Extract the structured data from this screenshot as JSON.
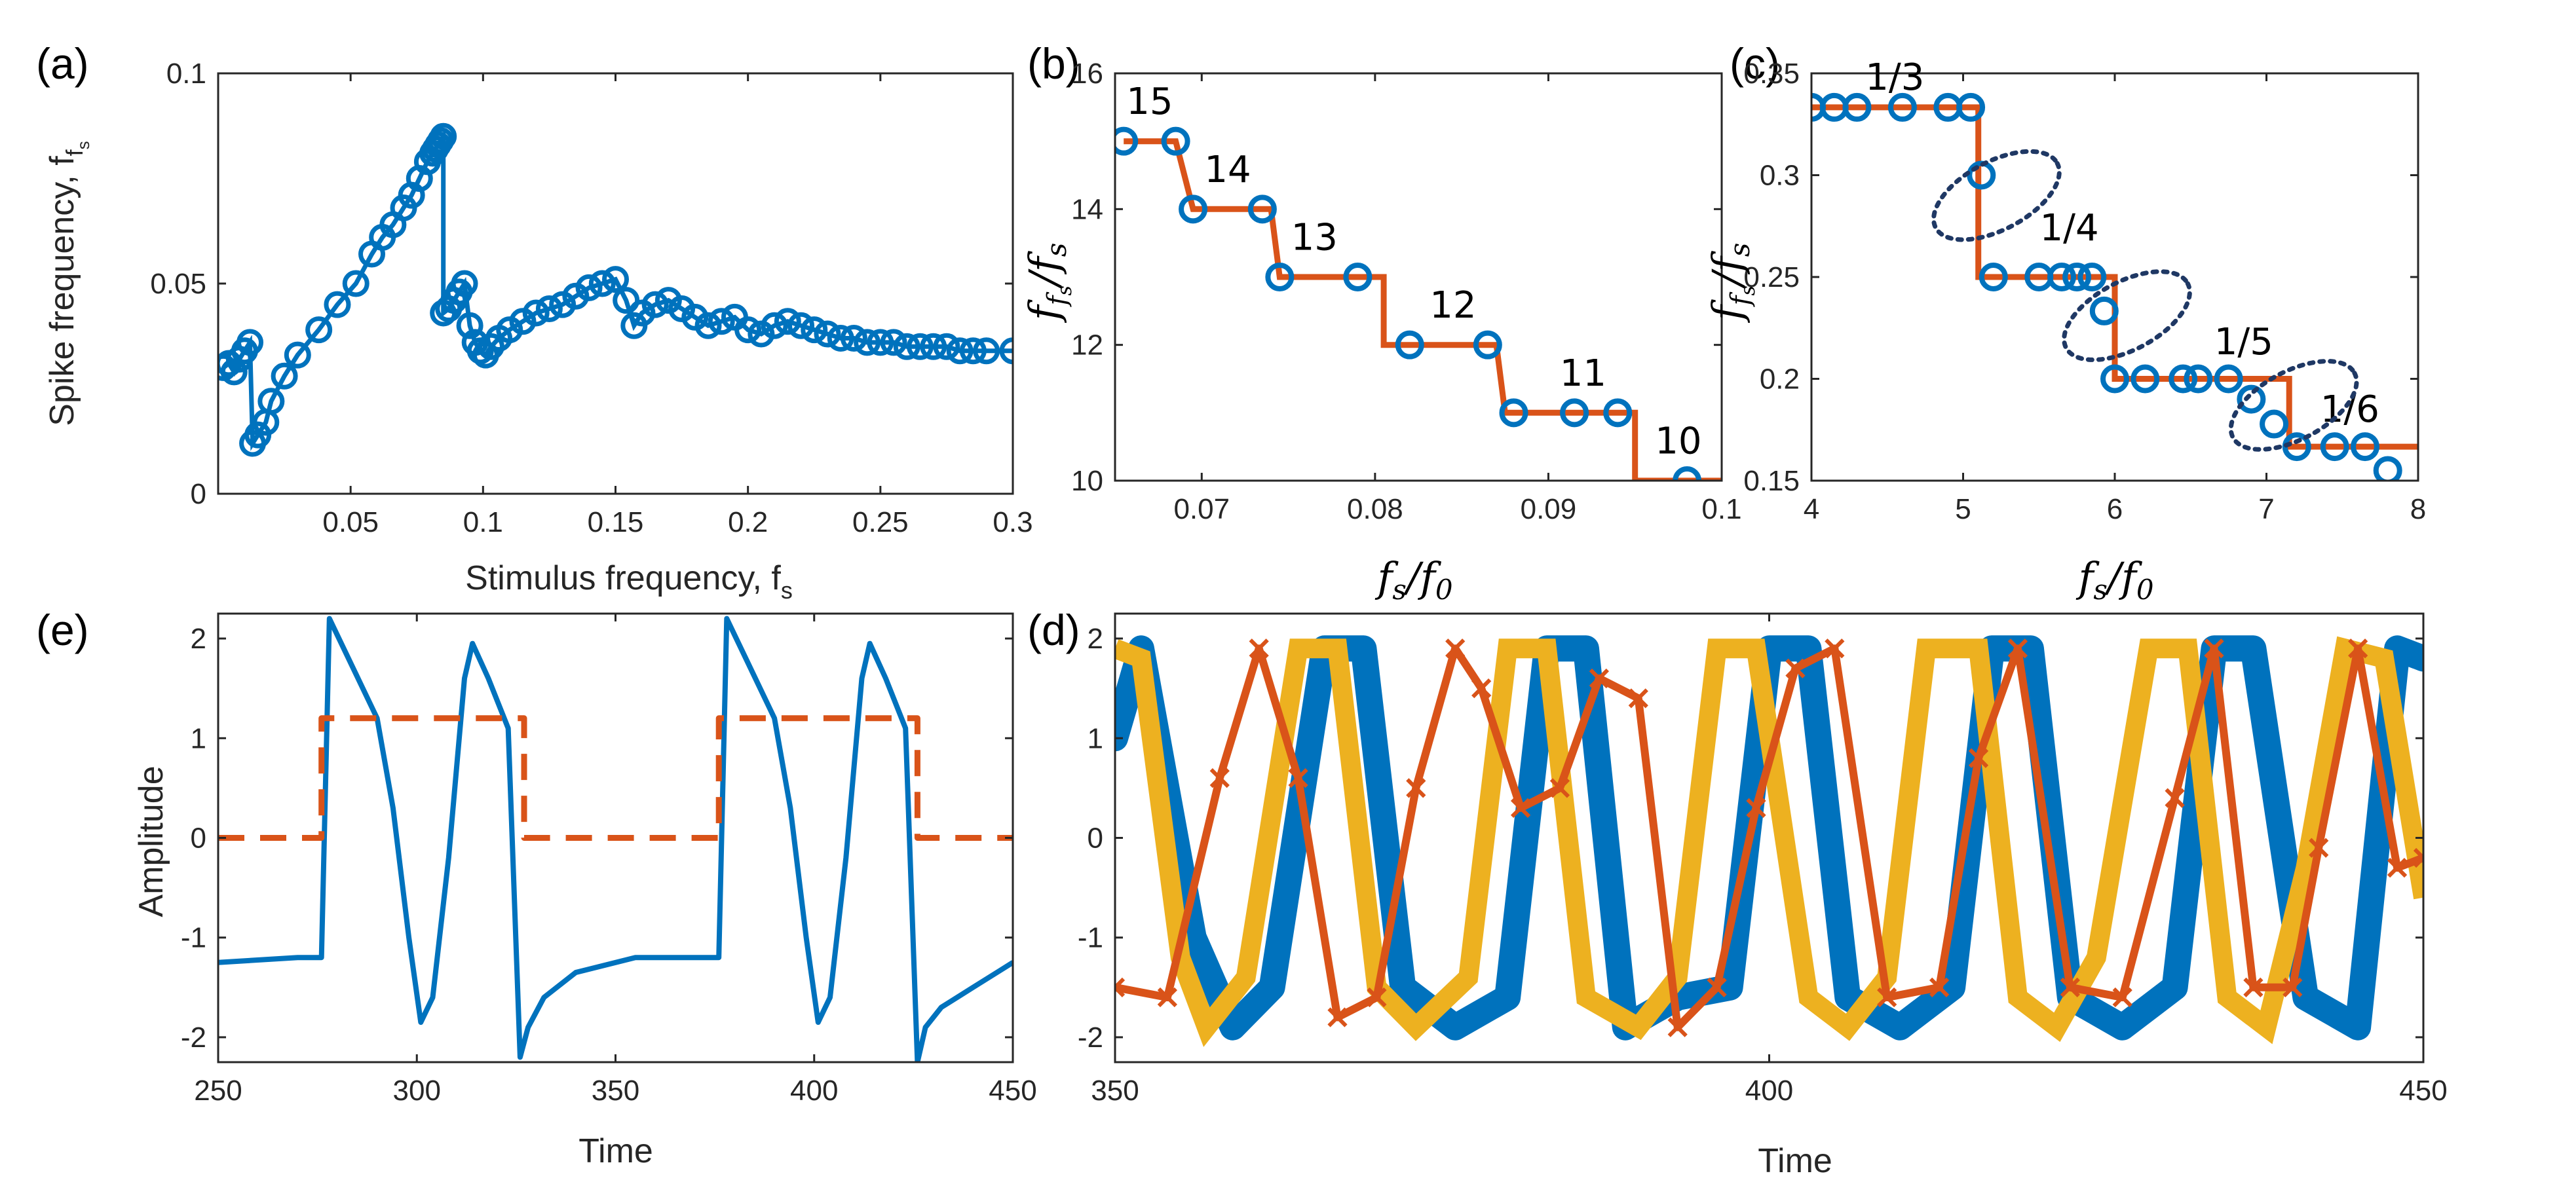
{
  "colors": {
    "blue": "#0072BD",
    "orange": "#D95319",
    "yellow": "#EDB120",
    "ellipse": "#1F3864"
  },
  "chart_data": [
    {
      "id": "a",
      "panel_label": "(a)",
      "type": "line",
      "xlabel": "Stimulus frequency, f",
      "xlabel_sub": "s",
      "ylabel": "Spike frequency, f",
      "ylabel_sub": "f",
      "ylabel_subsub": "s",
      "xlim": [
        0.0,
        0.3
      ],
      "ylim": [
        0,
        0.1
      ],
      "xticks": [
        0.05,
        0.1,
        0.15,
        0.2,
        0.25,
        0.3
      ],
      "xtick_labels": [
        "0.05",
        "0.1",
        "0.15",
        "0.2",
        "0.25",
        "0.3"
      ],
      "yticks": [
        0,
        0.05,
        0.1
      ],
      "ytick_labels": [
        "0",
        "0.05",
        "0.1"
      ],
      "series": [
        {
          "color": "#0072BD",
          "marker": "circle",
          "x": [
            0.002,
            0.004,
            0.006,
            0.008,
            0.01,
            0.012,
            0.013,
            0.015,
            0.018,
            0.02,
            0.025,
            0.03,
            0.038,
            0.045,
            0.052,
            0.058,
            0.062,
            0.066,
            0.07,
            0.073,
            0.076,
            0.079,
            0.081,
            0.082,
            0.083,
            0.084,
            0.085,
            0.085,
            0.087,
            0.089,
            0.091,
            0.093,
            0.095,
            0.097,
            0.099,
            0.101,
            0.103,
            0.106,
            0.11,
            0.115,
            0.12,
            0.125,
            0.13,
            0.135,
            0.14,
            0.145,
            0.15,
            0.154,
            0.157,
            0.16,
            0.165,
            0.17,
            0.175,
            0.18,
            0.185,
            0.19,
            0.195,
            0.2,
            0.205,
            0.21,
            0.215,
            0.22,
            0.225,
            0.23,
            0.235,
            0.24,
            0.245,
            0.25,
            0.255,
            0.26,
            0.265,
            0.27,
            0.275,
            0.28,
            0.285,
            0.29,
            0.3
          ],
          "y": [
            0.03,
            0.031,
            0.029,
            0.032,
            0.034,
            0.036,
            0.012,
            0.014,
            0.017,
            0.022,
            0.028,
            0.033,
            0.039,
            0.045,
            0.05,
            0.057,
            0.061,
            0.064,
            0.068,
            0.071,
            0.075,
            0.079,
            0.081,
            0.082,
            0.083,
            0.084,
            0.085,
            0.043,
            0.044,
            0.046,
            0.048,
            0.05,
            0.04,
            0.036,
            0.034,
            0.033,
            0.035,
            0.037,
            0.039,
            0.041,
            0.043,
            0.044,
            0.045,
            0.047,
            0.049,
            0.05,
            0.051,
            0.046,
            0.04,
            0.043,
            0.045,
            0.046,
            0.044,
            0.042,
            0.04,
            0.041,
            0.042,
            0.039,
            0.038,
            0.04,
            0.041,
            0.04,
            0.039,
            0.038,
            0.037,
            0.037,
            0.036,
            0.036,
            0.036,
            0.035,
            0.035,
            0.035,
            0.035,
            0.034,
            0.034,
            0.034,
            0.034
          ]
        }
      ]
    },
    {
      "id": "b",
      "panel_label": "(b)",
      "type": "line",
      "xlabel_math": "f_s/f_0",
      "ylabel_math": "f_{f_s}/f_s",
      "xlim": [
        0.065,
        0.1
      ],
      "ylim": [
        10,
        16
      ],
      "xticks": [
        0.07,
        0.08,
        0.09,
        0.1
      ],
      "xtick_labels": [
        "0.07",
        "0.08",
        "0.09",
        "0.1"
      ],
      "yticks": [
        10,
        12,
        14,
        16
      ],
      "ytick_labels": [
        "10",
        "12",
        "14",
        "16"
      ],
      "series": [
        {
          "kind": "step",
          "color": "#D95319",
          "x": [
            0.0655,
            0.0685,
            0.0695,
            0.074,
            0.0745,
            0.0805,
            0.0805,
            0.087,
            0.0875,
            0.095,
            0.095,
            0.1
          ],
          "y": [
            15,
            15,
            14,
            14,
            13,
            13,
            12,
            12,
            11,
            11,
            10,
            10
          ]
        },
        {
          "kind": "markers",
          "color": "#0072BD",
          "x": [
            0.0655,
            0.0685,
            0.0695,
            0.0735,
            0.0745,
            0.079,
            0.082,
            0.0865,
            0.088,
            0.0915,
            0.094,
            0.098
          ],
          "y": [
            15,
            15,
            14,
            14,
            13,
            13,
            12,
            12,
            11,
            11,
            11,
            10
          ]
        }
      ],
      "annotations": [
        {
          "text": "15",
          "x": 0.067,
          "y": 15.4
        },
        {
          "text": "14",
          "x": 0.0715,
          "y": 14.4
        },
        {
          "text": "13",
          "x": 0.0765,
          "y": 13.4
        },
        {
          "text": "12",
          "x": 0.0845,
          "y": 12.4
        },
        {
          "text": "11",
          "x": 0.092,
          "y": 11.4
        },
        {
          "text": "10",
          "x": 0.0975,
          "y": 10.4
        }
      ]
    },
    {
      "id": "c",
      "panel_label": "(c)",
      "type": "line",
      "xlabel_math": "f_s/f_0",
      "ylabel_math": "f_{f_s}/f_s",
      "xlim": [
        4,
        8
      ],
      "ylim": [
        0.15,
        0.35
      ],
      "xticks": [
        4,
        5,
        6,
        7,
        8
      ],
      "xtick_labels": [
        "4",
        "5",
        "6",
        "7",
        "8"
      ],
      "yticks": [
        0.15,
        0.2,
        0.25,
        0.3,
        0.35
      ],
      "ytick_labels": [
        "0.15",
        "0.2",
        "0.25",
        "0.3",
        "0.35"
      ],
      "series": [
        {
          "kind": "step",
          "color": "#D95319",
          "x": [
            4,
            5.1,
            5.1,
            6.0,
            6.0,
            7.15,
            7.15,
            8
          ],
          "y": [
            0.3333,
            0.3333,
            0.25,
            0.25,
            0.2,
            0.2,
            0.1667,
            0.1667
          ]
        },
        {
          "kind": "markers",
          "color": "#0072BD",
          "x": [
            4.0,
            4.15,
            4.3,
            4.6,
            4.9,
            5.05,
            5.12,
            5.2,
            5.5,
            5.65,
            5.75,
            5.85,
            5.93,
            6.0,
            6.2,
            6.45,
            6.55,
            6.75,
            6.9,
            7.05,
            7.2,
            7.45,
            7.65,
            7.8
          ],
          "y": [
            0.3333,
            0.3333,
            0.3333,
            0.3333,
            0.3333,
            0.3333,
            0.3,
            0.25,
            0.25,
            0.25,
            0.25,
            0.25,
            0.2333,
            0.2,
            0.2,
            0.2,
            0.2,
            0.2,
            0.19,
            0.1778,
            0.1667,
            0.1667,
            0.1667,
            0.155
          ]
        }
      ],
      "annotations": [
        {
          "text": "1/3",
          "x": 4.55,
          "y": 0.342
        },
        {
          "text": "1/4",
          "x": 5.7,
          "y": 0.268
        },
        {
          "text": "1/5",
          "x": 6.85,
          "y": 0.212
        },
        {
          "text": "1/6",
          "x": 7.55,
          "y": 0.179
        }
      ],
      "ellipses": [
        {
          "cx": 5.22,
          "cy": 0.29
        },
        {
          "cx": 6.08,
          "cy": 0.231
        },
        {
          "cx": 7.18,
          "cy": 0.187
        }
      ]
    },
    {
      "id": "e",
      "panel_label": "(e)",
      "type": "line",
      "xlabel": "Time",
      "ylabel": "Amplitude",
      "xlim": [
        250,
        450
      ],
      "ylim": [
        -2.25,
        2.25
      ],
      "xticks": [
        250,
        300,
        350,
        400,
        450
      ],
      "xtick_labels": [
        "250",
        "300",
        "350",
        "400",
        "450"
      ],
      "yticks": [
        -2,
        -1,
        0,
        1,
        2
      ],
      "ytick_labels": [
        "-2",
        "-1",
        "0",
        "1",
        "2"
      ],
      "series": [
        {
          "kind": "solid",
          "color": "#0072BD",
          "x": [
            250,
            270,
            276,
            278,
            290,
            294,
            298,
            301,
            304,
            308,
            312,
            314,
            318,
            323,
            326,
            328,
            332,
            340,
            355,
            375,
            376,
            378,
            390,
            394,
            398,
            401,
            404,
            408,
            412,
            414,
            418,
            423,
            426,
            428,
            432,
            440,
            450
          ],
          "y": [
            -1.25,
            -1.2,
            -1.2,
            2.2,
            1.2,
            0.3,
            -1.0,
            -1.85,
            -1.6,
            -0.2,
            1.6,
            1.95,
            1.6,
            1.1,
            -2.2,
            -1.9,
            -1.6,
            -1.35,
            -1.2,
            -1.2,
            -1.2,
            2.2,
            1.2,
            0.3,
            -1.0,
            -1.85,
            -1.6,
            -0.2,
            1.6,
            1.95,
            1.6,
            1.1,
            -2.25,
            -1.9,
            -1.7,
            -1.5,
            -1.25
          ]
        },
        {
          "kind": "dashed",
          "color": "#D95319",
          "x": [
            250,
            276,
            276,
            327,
            327,
            376,
            376,
            426,
            426,
            450
          ],
          "y": [
            0,
            0,
            1.2,
            1.2,
            0,
            0,
            1.2,
            1.2,
            0,
            0
          ]
        }
      ]
    },
    {
      "id": "d",
      "panel_label": "(d)",
      "type": "line",
      "xlabel": "Time",
      "xlim": [
        350,
        450
      ],
      "ylim": [
        -2.25,
        2.25
      ],
      "xticks": [
        350,
        400,
        450
      ],
      "xtick_labels": [
        "350",
        "400",
        "450"
      ],
      "yticks": [
        -2,
        -1,
        0,
        1,
        2
      ],
      "ytick_labels": [
        "-2",
        "-1",
        "0",
        "1",
        "2"
      ],
      "series": [
        {
          "color": "#0072BD",
          "marker": "circle",
          "x": [
            350,
            352,
            356,
            359,
            362,
            366,
            369,
            372,
            376,
            380,
            383,
            386,
            389,
            393,
            397,
            400,
            403,
            406,
            410,
            414,
            417,
            420,
            423,
            427,
            431,
            434,
            437,
            441,
            445,
            448,
            450
          ],
          "y": [
            1.0,
            1.9,
            -1.0,
            -1.9,
            -1.5,
            1.9,
            1.9,
            -1.5,
            -1.9,
            -1.6,
            1.9,
            1.9,
            -1.9,
            -1.6,
            -1.5,
            1.9,
            1.9,
            -1.6,
            -1.9,
            -1.5,
            1.9,
            1.9,
            -1.6,
            -1.9,
            -1.5,
            1.9,
            1.9,
            -1.6,
            -1.9,
            1.9,
            1.8
          ]
        },
        {
          "color": "#D95319",
          "marker": "x",
          "x": [
            350,
            354,
            358,
            361,
            364,
            367,
            370,
            373,
            376,
            378,
            381,
            384,
            387,
            390,
            393,
            396,
            399,
            402,
            405,
            409,
            413,
            416,
            419,
            423,
            427,
            431,
            434,
            437,
            440,
            442,
            445,
            448,
            450
          ],
          "y": [
            -1.5,
            -1.6,
            0.6,
            1.9,
            0.6,
            -1.8,
            -1.6,
            0.5,
            1.9,
            1.5,
            0.3,
            0.5,
            1.6,
            1.4,
            -1.9,
            -1.5,
            0.3,
            1.7,
            1.9,
            -1.6,
            -1.5,
            0.8,
            1.9,
            -1.5,
            -1.6,
            0.4,
            1.9,
            -1.5,
            -1.5,
            -0.1,
            1.9,
            -0.3,
            -0.2
          ]
        },
        {
          "color": "#EDB120",
          "marker": "square",
          "x": [
            350,
            352,
            355,
            357,
            360,
            364,
            367,
            370,
            373,
            377,
            380,
            383,
            386,
            390,
            393,
            396,
            399,
            403,
            406,
            409,
            412,
            416,
            419,
            422,
            425,
            429,
            432,
            435,
            438,
            441,
            444,
            447,
            450
          ],
          "y": [
            1.9,
            1.8,
            -1.2,
            -1.9,
            -1.4,
            1.9,
            1.9,
            -1.5,
            -1.9,
            -1.4,
            1.9,
            1.9,
            -1.6,
            -1.9,
            -1.4,
            1.9,
            1.9,
            -1.6,
            -1.9,
            -1.4,
            1.9,
            1.9,
            -1.6,
            -1.9,
            -1.2,
            1.9,
            1.9,
            -1.6,
            -1.9,
            -0.3,
            1.9,
            1.8,
            -0.6
          ]
        }
      ]
    }
  ]
}
